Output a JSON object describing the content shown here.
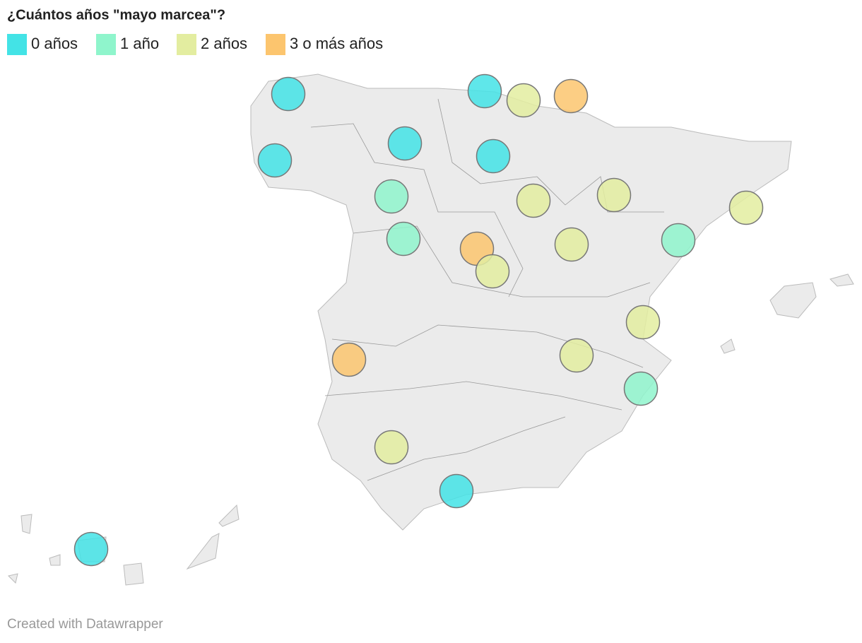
{
  "header": {
    "title": "¿Cuántos años \"mayo marcea\"?"
  },
  "legend": [
    {
      "label": "0 años",
      "value": 0,
      "color": "#43e3e6"
    },
    {
      "label": "1 año",
      "value": 1,
      "color": "#8ff5cc"
    },
    {
      "label": "2 años",
      "value": 2,
      "color": "#e3eda0"
    },
    {
      "label": "3 o más años",
      "value": 3,
      "color": "#fcc56e"
    }
  ],
  "points": {
    "values": [
      0,
      0,
      0,
      0,
      2,
      3,
      0,
      1,
      1,
      2,
      2,
      2,
      3,
      2,
      2,
      1,
      2,
      2,
      3,
      1,
      2,
      0,
      0
    ]
  },
  "footer": {
    "credit": "Created with Datawrapper"
  }
}
